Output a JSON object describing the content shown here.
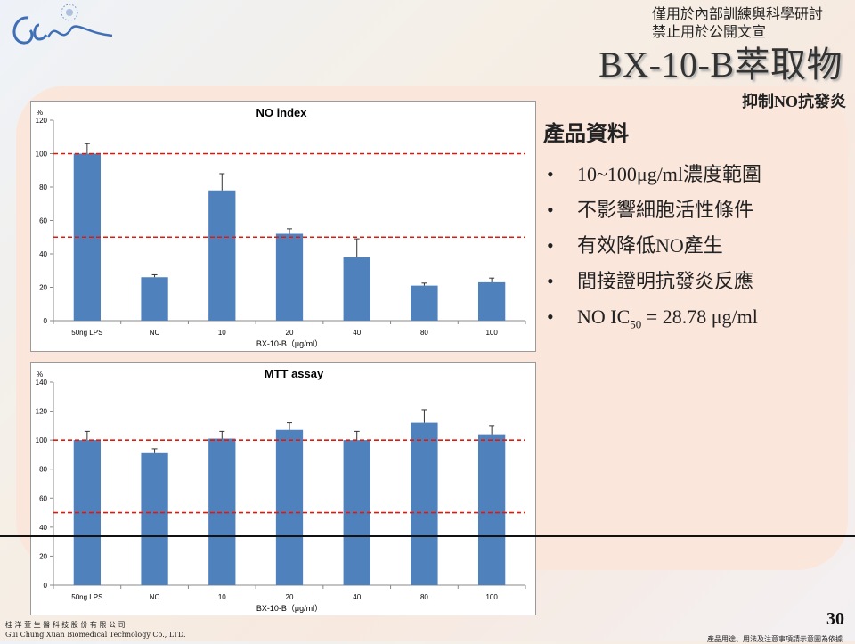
{
  "header": {
    "notice_line1": "僅用於內部訓練與科學研討",
    "notice_line2": "禁止用於公開文宣",
    "title": "BX-10-B萃取物",
    "subtitle": "抑制NO抗發炎"
  },
  "info": {
    "heading": "產品資料",
    "bullets": [
      "10~100μg/ml濃度範圍",
      "不影響細胞活性條件",
      "有效降低NO產生",
      "間接證明抗發炎反應"
    ],
    "ic50": {
      "prefix": "NO IC",
      "sub": "50",
      "suffix": " = 28.78 μg/ml"
    }
  },
  "footer": {
    "company_zh": "桂 洋 萱 生 醫 科 技 股 份 有 限 公 司",
    "company_en": "Gui Chung Xuan Biomedical Technology Co., LTD.",
    "disclaimer": "產品用途、用法及注意事項請示意圖為依據",
    "page_number": "30"
  },
  "colors": {
    "bar": "#4f81bd",
    "ref_line": "#e3170a",
    "axis": "#888888"
  },
  "chart_data": [
    {
      "type": "bar",
      "title": "NO index",
      "unit": "%",
      "xlabel": "BX-10-B（μg/ml）",
      "categories": [
        "50ng LPS",
        "NC",
        "10",
        "20",
        "40",
        "80",
        "100"
      ],
      "values": [
        100,
        26,
        78,
        52,
        38,
        21,
        23
      ],
      "errors": [
        6,
        1.5,
        10,
        3,
        11,
        1.5,
        2.5
      ],
      "ylim": [
        0,
        120
      ],
      "yticks": [
        0,
        20,
        40,
        60,
        80,
        100,
        120
      ],
      "reference_lines": [
        100,
        50
      ]
    },
    {
      "type": "bar",
      "title": "MTT assay",
      "unit": "%",
      "xlabel": "BX-10-B（μg/ml）",
      "categories": [
        "50ng LPS",
        "NC",
        "10",
        "20",
        "40",
        "80",
        "100"
      ],
      "values": [
        100,
        91,
        101,
        107,
        100,
        112,
        104
      ],
      "errors": [
        6,
        3,
        5,
        5,
        6,
        9,
        6
      ],
      "ylim": [
        0,
        140
      ],
      "yticks": [
        0,
        20,
        40,
        60,
        80,
        100,
        120,
        140
      ],
      "reference_lines": [
        100,
        50
      ]
    }
  ]
}
